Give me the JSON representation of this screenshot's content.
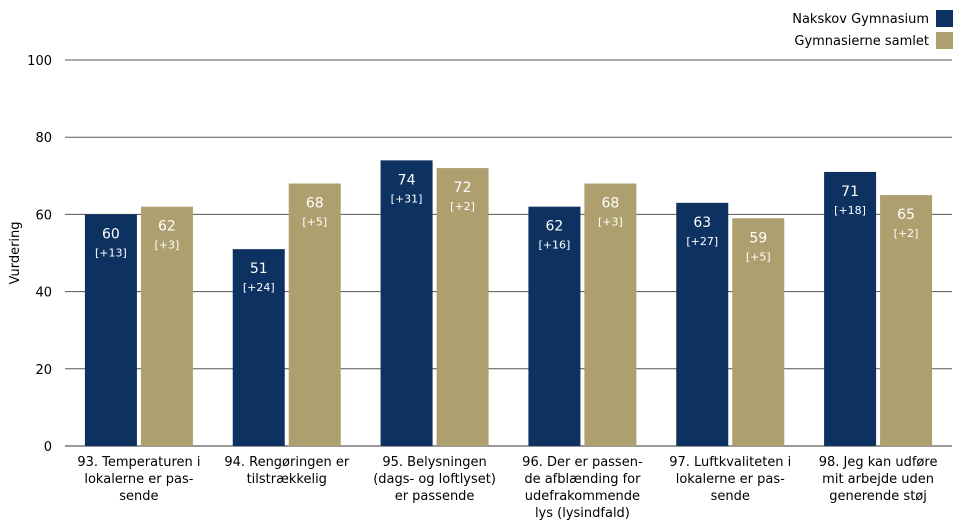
{
  "chart_data": {
    "type": "bar",
    "ylabel": "Vurdering",
    "ylim": [
      0,
      100
    ],
    "yticks": [
      0,
      20,
      40,
      60,
      80,
      100
    ],
    "grid": true,
    "legend_position": "top-right",
    "categories": [
      [
        "93. Temperaturen i",
        "lokalerne er pas-",
        "sende"
      ],
      [
        "94. Rengøringen er",
        "tilstrækkelig"
      ],
      [
        "95. Belysningen",
        "(dags- og loftlyset)",
        "er passende"
      ],
      [
        "96. Der er passen-",
        "de afblænding for",
        "udefrakommende",
        "lys (lysindfald)"
      ],
      [
        "97. Luftkvaliteten i",
        "lokalerne er pas-",
        "sende"
      ],
      [
        "98. Jeg kan udføre",
        "mit arbejde uden",
        "generende støj"
      ]
    ],
    "series": [
      {
        "name": "Nakskov Gymnasium",
        "color": "#0d3160",
        "values": [
          60,
          51,
          74,
          62,
          63,
          71
        ],
        "labels": [
          "60",
          "51",
          "74",
          "62",
          "63",
          "71"
        ],
        "deltas": [
          "[+13]",
          "[+24]",
          "[+31]",
          "[+16]",
          "[+27]",
          "[+18]"
        ]
      },
      {
        "name": "Gymnasierne samlet",
        "color": "#ae9f6f",
        "values": [
          62,
          68,
          72,
          68,
          59,
          65
        ],
        "labels": [
          "62",
          "68",
          "72",
          "68",
          "59",
          "65"
        ],
        "deltas": [
          "[+3]",
          "[+5]",
          "[+2]",
          "[+3]",
          "[+5]",
          "[+2]"
        ]
      }
    ]
  }
}
